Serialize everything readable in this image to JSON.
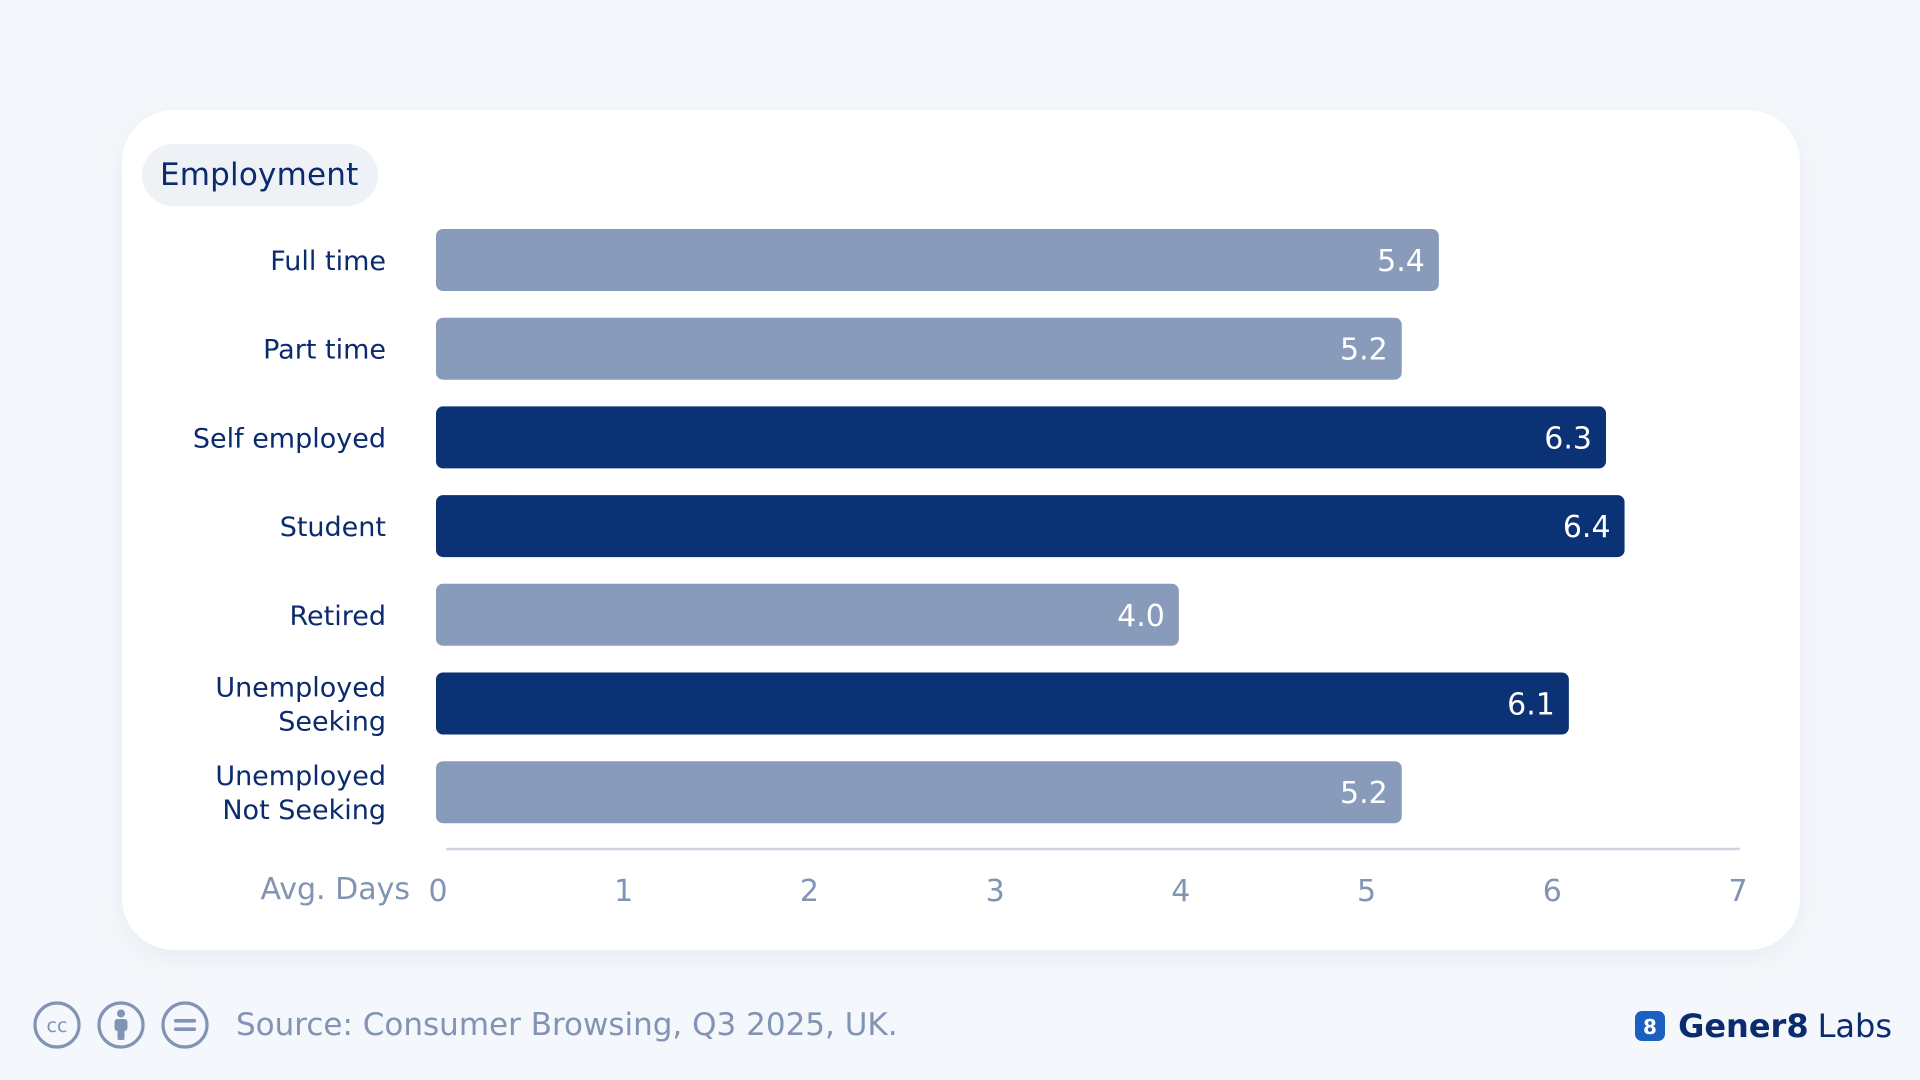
{
  "panel": {
    "title": "Employment"
  },
  "chart_data": {
    "type": "bar",
    "orientation": "horizontal",
    "categories": [
      [
        "Full time"
      ],
      [
        "Part time"
      ],
      [
        "Self employed"
      ],
      [
        "Student"
      ],
      [
        "Retired"
      ],
      [
        "Unemployed",
        "Seeking"
      ],
      [
        "Unemployed",
        "Not Seeking"
      ]
    ],
    "values": [
      5.4,
      5.2,
      6.3,
      6.4,
      4.0,
      6.1,
      5.2
    ],
    "value_labels": [
      "5.4",
      "5.2",
      "6.3",
      "6.4",
      "4.0",
      "6.1",
      "5.2"
    ],
    "highlighted": [
      false,
      false,
      true,
      true,
      false,
      true,
      false
    ],
    "xlabel": "Avg. Days",
    "xlim": [
      0,
      7
    ],
    "xticks": [
      0,
      1,
      2,
      3,
      4,
      5,
      6,
      7
    ],
    "grid": false,
    "colors": {
      "default_bar": "#889bba",
      "highlight_bar": "#0b3274",
      "category_text": "#0b2b6f",
      "axis_text": "#8294b4",
      "axis_line": "#cfd6e2"
    }
  },
  "footer": {
    "license_icons": [
      "cc-icon",
      "by-icon",
      "nd-icon"
    ],
    "source": "Source: Consumer Browsing, Q3 2025, UK."
  },
  "brand": {
    "mark": "8",
    "name_strong": "Gener8",
    "name_light": "Labs",
    "color": "#0b2b6f"
  }
}
